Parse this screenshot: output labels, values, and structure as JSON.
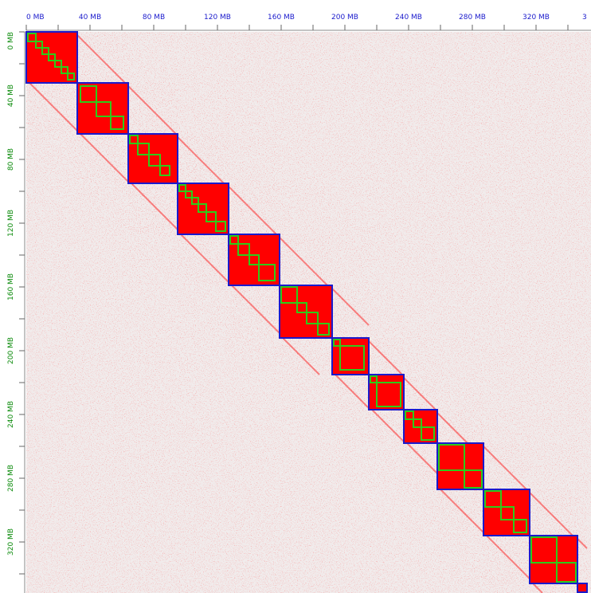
{
  "colors": {
    "background": "#f1ecec",
    "contact": "#ff0000",
    "chromosome_outline": "#1a1acc",
    "tad_outline": "#2ecc1a",
    "top_axis_text": "#1a1acc",
    "left_axis_text": "#0a8a0a"
  },
  "axis": {
    "unit": "MB",
    "max_mb": 350,
    "top_ticks": [
      {
        "mb": 0,
        "label": "0 MB"
      },
      {
        "mb": 40,
        "label": "40 MB"
      },
      {
        "mb": 80,
        "label": "80 MB"
      },
      {
        "mb": 120,
        "label": "120 MB"
      },
      {
        "mb": 160,
        "label": "160 MB"
      },
      {
        "mb": 200,
        "label": "200 MB"
      },
      {
        "mb": 240,
        "label": "240 MB"
      },
      {
        "mb": 280,
        "label": "280 MB"
      },
      {
        "mb": 320,
        "label": "320 MB"
      },
      {
        "mb": 349,
        "label": "3"
      }
    ],
    "left_ticks": [
      {
        "mb": 0,
        "label": "0 MB"
      },
      {
        "mb": 40,
        "label": "40 MB"
      },
      {
        "mb": 80,
        "label": "80 MB"
      },
      {
        "mb": 120,
        "label": "120 MB"
      },
      {
        "mb": 160,
        "label": "160 MB"
      },
      {
        "mb": 200,
        "label": "200 MB"
      },
      {
        "mb": 240,
        "label": "240 MB"
      },
      {
        "mb": 280,
        "label": "280 MB"
      },
      {
        "mb": 320,
        "label": "320 MB"
      }
    ],
    "minor_tick_every_mb": 20
  },
  "chromosomes": [
    {
      "start": 0,
      "end": 32
    },
    {
      "start": 32,
      "end": 64
    },
    {
      "start": 64,
      "end": 95
    },
    {
      "start": 95,
      "end": 127
    },
    {
      "start": 127,
      "end": 159
    },
    {
      "start": 159,
      "end": 192
    },
    {
      "start": 192,
      "end": 215
    },
    {
      "start": 215,
      "end": 237
    },
    {
      "start": 237,
      "end": 258
    },
    {
      "start": 258,
      "end": 287
    },
    {
      "start": 287,
      "end": 316
    },
    {
      "start": 316,
      "end": 346
    },
    {
      "start": 346,
      "end": 352
    }
  ],
  "tads": [
    {
      "start": 1,
      "end": 6
    },
    {
      "start": 6,
      "end": 10
    },
    {
      "start": 10,
      "end": 14
    },
    {
      "start": 14,
      "end": 18
    },
    {
      "start": 18,
      "end": 22
    },
    {
      "start": 22,
      "end": 26
    },
    {
      "start": 26,
      "end": 30
    },
    {
      "start": 34,
      "end": 44
    },
    {
      "start": 44,
      "end": 53
    },
    {
      "start": 53,
      "end": 61
    },
    {
      "start": 65,
      "end": 70
    },
    {
      "start": 70,
      "end": 77
    },
    {
      "start": 77,
      "end": 84
    },
    {
      "start": 84,
      "end": 90
    },
    {
      "start": 96,
      "end": 100
    },
    {
      "start": 100,
      "end": 104
    },
    {
      "start": 104,
      "end": 108
    },
    {
      "start": 108,
      "end": 113
    },
    {
      "start": 113,
      "end": 119
    },
    {
      "start": 119,
      "end": 125
    },
    {
      "start": 128,
      "end": 133
    },
    {
      "start": 133,
      "end": 140
    },
    {
      "start": 140,
      "end": 146
    },
    {
      "start": 146,
      "end": 156
    },
    {
      "start": 160,
      "end": 170
    },
    {
      "start": 170,
      "end": 176
    },
    {
      "start": 176,
      "end": 183
    },
    {
      "start": 183,
      "end": 190
    },
    {
      "start": 193,
      "end": 197
    },
    {
      "start": 197,
      "end": 212
    },
    {
      "start": 216,
      "end": 220
    },
    {
      "start": 220,
      "end": 235
    },
    {
      "start": 238,
      "end": 243
    },
    {
      "start": 243,
      "end": 248
    },
    {
      "start": 248,
      "end": 256
    },
    {
      "start": 259,
      "end": 275
    },
    {
      "start": 275,
      "end": 286
    },
    {
      "start": 288,
      "end": 298
    },
    {
      "start": 298,
      "end": 306
    },
    {
      "start": 306,
      "end": 314
    },
    {
      "start": 317,
      "end": 333
    },
    {
      "start": 333,
      "end": 345
    }
  ]
}
